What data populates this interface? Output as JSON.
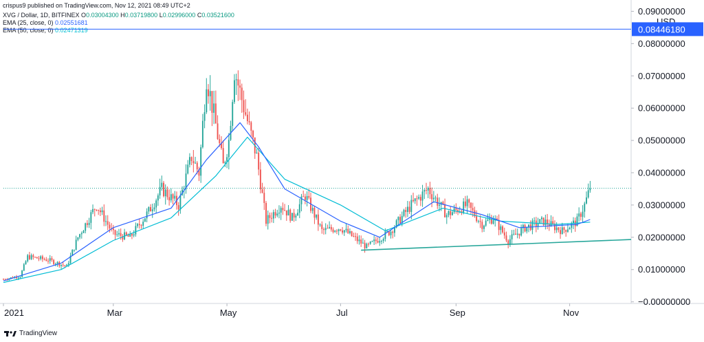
{
  "header": {
    "published": "crispus9 published on TradingView.com, Nov 12, 2021 08:49 UTC+2",
    "symbol": "XVG / Dollar, 1D, BITFINEX",
    "ohlc": {
      "o_label": "O",
      "o": "0.03004300",
      "h_label": "H",
      "h": "0.03719800",
      "l_label": "L",
      "l": "0.02996000",
      "c_label": "C",
      "c": "0.03521600"
    },
    "ema25_label": "EMA (25, close, 0)",
    "ema25_value": "0.02551681",
    "ema50_label": "EMA (50, close, 0)",
    "ema50_value": "0.02471319"
  },
  "currency_label": "USD",
  "price_badge": "0.08446180",
  "footer": {
    "brand": "TradingView"
  },
  "colors": {
    "up": "#26a69a",
    "down": "#ef5350",
    "ema25": "#2962ff",
    "ema50": "#00bcd4",
    "trendline": "#26a69a",
    "level_line": "#2962ff",
    "badge": "#2962ff"
  },
  "chart_data": {
    "type": "candlestick",
    "y_axis": {
      "ticks": [
        "0.09000000",
        "0.08000000",
        "0.07000000",
        "0.06000000",
        "0.05000000",
        "0.04000000",
        "0.03000000",
        "0.02000000",
        "0.01000000",
        "−0.00000000"
      ],
      "tick_values": [
        0.09,
        0.08,
        0.07,
        0.06,
        0.05,
        0.04,
        0.03,
        0.02,
        0.01,
        0.0
      ],
      "ylim": [
        -0.0005,
        0.0935
      ]
    },
    "x_axis": {
      "ticks": [
        "2021",
        "Mar",
        "May",
        "Jul",
        "Sep",
        "Nov"
      ],
      "tick_values": [
        "2021-01-01",
        "2021-03-01",
        "2021-05-01",
        "2021-07-01",
        "2021-09-01",
        "2021-11-01"
      ],
      "xlim": [
        "2021-01-01",
        "2021-12-04"
      ]
    },
    "horizontal_level": 0.0844618,
    "last_close_level": 0.035216,
    "trendline": [
      {
        "x": "2021-07-12",
        "y": 0.016
      },
      {
        "x": "2021-12-04",
        "y": 0.0193
      }
    ],
    "price_path": [
      {
        "x": "2021-01-01",
        "y": 0.007
      },
      {
        "x": "2021-01-10",
        "y": 0.008
      },
      {
        "x": "2021-01-14",
        "y": 0.014
      },
      {
        "x": "2021-01-25",
        "y": 0.013
      },
      {
        "x": "2021-02-04",
        "y": 0.011
      },
      {
        "x": "2021-02-10",
        "y": 0.02
      },
      {
        "x": "2021-02-20",
        "y": 0.03
      },
      {
        "x": "2021-03-01",
        "y": 0.021
      },
      {
        "x": "2021-03-10",
        "y": 0.02
      },
      {
        "x": "2021-03-20",
        "y": 0.028
      },
      {
        "x": "2021-03-27",
        "y": 0.035
      },
      {
        "x": "2021-04-05",
        "y": 0.03
      },
      {
        "x": "2021-04-12",
        "y": 0.045
      },
      {
        "x": "2021-04-16",
        "y": 0.04
      },
      {
        "x": "2021-04-20",
        "y": 0.07
      },
      {
        "x": "2021-04-24",
        "y": 0.058
      },
      {
        "x": "2021-04-29",
        "y": 0.042
      },
      {
        "x": "2021-05-02",
        "y": 0.05
      },
      {
        "x": "2021-05-05",
        "y": 0.072
      },
      {
        "x": "2021-05-08",
        "y": 0.065
      },
      {
        "x": "2021-05-12",
        "y": 0.056
      },
      {
        "x": "2021-05-17",
        "y": 0.045
      },
      {
        "x": "2021-05-22",
        "y": 0.025
      },
      {
        "x": "2021-05-30",
        "y": 0.03
      },
      {
        "x": "2021-06-05",
        "y": 0.026
      },
      {
        "x": "2021-06-12",
        "y": 0.033
      },
      {
        "x": "2021-06-21",
        "y": 0.022
      },
      {
        "x": "2021-07-01",
        "y": 0.023
      },
      {
        "x": "2021-07-15",
        "y": 0.017
      },
      {
        "x": "2021-07-28",
        "y": 0.022
      },
      {
        "x": "2021-08-08",
        "y": 0.03
      },
      {
        "x": "2021-08-17",
        "y": 0.035
      },
      {
        "x": "2021-08-27",
        "y": 0.027
      },
      {
        "x": "2021-09-07",
        "y": 0.03
      },
      {
        "x": "2021-09-15",
        "y": 0.024
      },
      {
        "x": "2021-09-21",
        "y": 0.026
      },
      {
        "x": "2021-09-29",
        "y": 0.019
      },
      {
        "x": "2021-10-08",
        "y": 0.023
      },
      {
        "x": "2021-10-18",
        "y": 0.025
      },
      {
        "x": "2021-10-28",
        "y": 0.022
      },
      {
        "x": "2021-11-05",
        "y": 0.025
      },
      {
        "x": "2021-11-09",
        "y": 0.03
      },
      {
        "x": "2021-11-12",
        "y": 0.0352
      }
    ],
    "ema25_path": [
      {
        "x": "2021-01-01",
        "y": 0.0065
      },
      {
        "x": "2021-02-01",
        "y": 0.012
      },
      {
        "x": "2021-03-01",
        "y": 0.023
      },
      {
        "x": "2021-04-01",
        "y": 0.029
      },
      {
        "x": "2021-04-20",
        "y": 0.044
      },
      {
        "x": "2021-05-08",
        "y": 0.0555
      },
      {
        "x": "2021-05-18",
        "y": 0.048
      },
      {
        "x": "2021-06-01",
        "y": 0.035
      },
      {
        "x": "2021-07-01",
        "y": 0.025
      },
      {
        "x": "2021-07-22",
        "y": 0.02
      },
      {
        "x": "2021-08-20",
        "y": 0.031
      },
      {
        "x": "2021-09-15",
        "y": 0.027
      },
      {
        "x": "2021-10-05",
        "y": 0.023
      },
      {
        "x": "2021-11-05",
        "y": 0.024
      },
      {
        "x": "2021-11-12",
        "y": 0.0255
      }
    ],
    "ema50_path": [
      {
        "x": "2021-01-01",
        "y": 0.006
      },
      {
        "x": "2021-02-01",
        "y": 0.01
      },
      {
        "x": "2021-03-01",
        "y": 0.019
      },
      {
        "x": "2021-04-01",
        "y": 0.026
      },
      {
        "x": "2021-04-25",
        "y": 0.039
      },
      {
        "x": "2021-05-12",
        "y": 0.051
      },
      {
        "x": "2021-06-01",
        "y": 0.038
      },
      {
        "x": "2021-07-01",
        "y": 0.03
      },
      {
        "x": "2021-07-25",
        "y": 0.022
      },
      {
        "x": "2021-08-25",
        "y": 0.029
      },
      {
        "x": "2021-09-25",
        "y": 0.025
      },
      {
        "x": "2021-10-25",
        "y": 0.024
      },
      {
        "x": "2021-11-12",
        "y": 0.0247
      }
    ]
  }
}
